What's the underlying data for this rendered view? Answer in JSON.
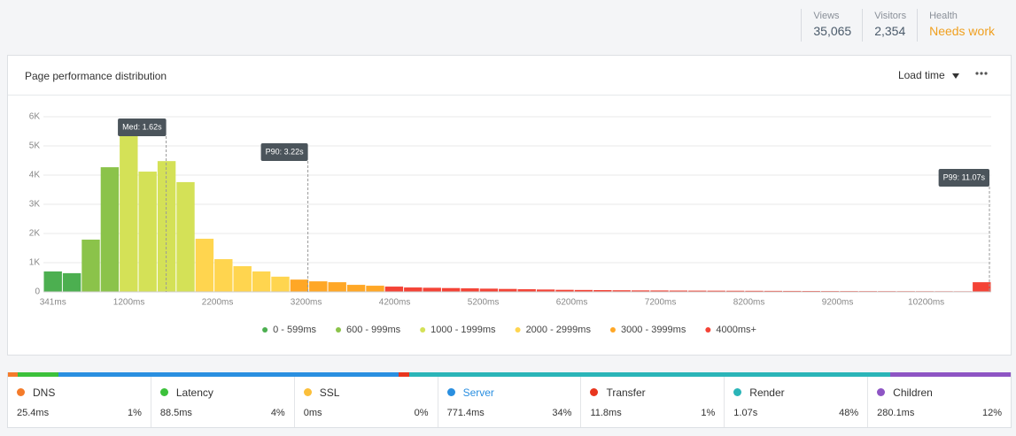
{
  "header": {
    "stats": [
      {
        "label": "Views",
        "value": "35,065"
      },
      {
        "label": "Visitors",
        "value": "2,354"
      },
      {
        "label": "Health",
        "value": "Needs work"
      }
    ]
  },
  "panel": {
    "title": "Page performance distribution",
    "metric_menu": "Load time"
  },
  "chart_data": {
    "type": "histogram",
    "bins": [
      234,
      448,
      662,
      876,
      1090,
      1304,
      1518,
      1732,
      1946,
      2160,
      2374,
      2588,
      2802,
      3016,
      3230,
      3444,
      3658,
      3872,
      4086,
      4300,
      4514,
      4728,
      4942,
      5156,
      5370,
      5584,
      5798,
      6012,
      6226,
      6440,
      6654,
      6868,
      7082,
      7296,
      7510,
      7724,
      7938,
      8152,
      8366,
      8580,
      8794,
      9008,
      9222,
      9436,
      9650,
      9864,
      10078,
      10292,
      10506,
      10720,
      10934
    ],
    "values": [
      700,
      640,
      1790,
      4270,
      5500,
      4120,
      4480,
      3760,
      1820,
      1120,
      880,
      700,
      520,
      420,
      360,
      330,
      240,
      210,
      180,
      150,
      140,
      130,
      120,
      110,
      100,
      90,
      80,
      70,
      65,
      60,
      55,
      50,
      48,
      45,
      42,
      40,
      38,
      36,
      34,
      32,
      30,
      28,
      27,
      26,
      25,
      24,
      23,
      22,
      21,
      330
    ],
    "colors": [
      "#4caf50",
      "#4caf50",
      "#8bc34a",
      "#8bc34a",
      "#d4e157",
      "#d4e157",
      "#d4e157",
      "#d4e157",
      "#ffd54f",
      "#ffd54f",
      "#ffd54f",
      "#ffd54f",
      "#ffd54f",
      "#ffa726",
      "#ffa726",
      "#ffa726",
      "#ffa726",
      "#ffa726",
      "#f44336",
      "#f44336",
      "#f44336",
      "#f44336",
      "#f44336",
      "#f44336",
      "#f44336",
      "#f44336",
      "#f44336",
      "#f44336",
      "#f44336",
      "#f44336",
      "#f44336",
      "#f44336",
      "#f44336",
      "#f44336",
      "#f44336",
      "#f44336",
      "#f44336",
      "#f44336",
      "#f44336",
      "#f44336",
      "#f44336",
      "#f44336",
      "#f44336",
      "#f44336",
      "#f44336",
      "#f44336",
      "#f44336",
      "#f44336",
      "#f44336",
      "#f44336"
    ],
    "xlim": [
      234,
      10934
    ],
    "xticks": [
      {
        "value": 341,
        "label": "341ms"
      },
      {
        "value": 1200,
        "label": "1200ms"
      },
      {
        "value": 2200,
        "label": "2200ms"
      },
      {
        "value": 3200,
        "label": "3200ms"
      },
      {
        "value": 4200,
        "label": "4200ms"
      },
      {
        "value": 5200,
        "label": "5200ms"
      },
      {
        "value": 6200,
        "label": "6200ms"
      },
      {
        "value": 7200,
        "label": "7200ms"
      },
      {
        "value": 8200,
        "label": "8200ms"
      },
      {
        "value": 9200,
        "label": "9200ms"
      },
      {
        "value": 10200,
        "label": "10200ms"
      }
    ],
    "ylim": [
      0,
      6000
    ],
    "yticks": [
      0,
      {
        "value": 1000,
        "label": "1K"
      },
      {
        "value": 2000,
        "label": "2K"
      },
      {
        "value": 3000,
        "label": "3K"
      },
      {
        "value": 4000,
        "label": "4K"
      },
      {
        "value": 5000,
        "label": "5K"
      },
      {
        "value": 6000,
        "label": "6K"
      }
    ],
    "grid": true,
    "legend": [
      {
        "name": "0 - 599ms",
        "color": "#4caf50"
      },
      {
        "name": "600 - 999ms",
        "color": "#8bc34a"
      },
      {
        "name": "1000 - 1999ms",
        "color": "#d4e157"
      },
      {
        "name": "2000 - 2999ms",
        "color": "#ffd54f"
      },
      {
        "name": "3000 - 3999ms",
        "color": "#ffa726"
      },
      {
        "name": "4000ms+",
        "color": "#f44336"
      }
    ],
    "annotations": [
      {
        "x": 1620,
        "label": "Med: 1.62s"
      },
      {
        "x": 3220,
        "label": "P90: 3.22s"
      },
      {
        "x": 11070,
        "label": "P99: 11.07s"
      }
    ]
  },
  "breakdown": {
    "items": [
      {
        "name": "DNS",
        "color": "#f47b2a",
        "time": "25.4ms",
        "share": {
          "value": 1,
          "label": "1%"
        }
      },
      {
        "name": "Latency",
        "color": "#3cc13b",
        "time": "88.5ms",
        "share": {
          "value": 4,
          "label": "4%"
        }
      },
      {
        "name": "SSL",
        "color": "#fbbf3a",
        "time": "0ms",
        "share": {
          "value": 0,
          "label": "0%"
        }
      },
      {
        "name": "Server",
        "color": "#2a8fe0",
        "time": "771.4ms",
        "share": {
          "value": 34,
          "label": "34%"
        }
      },
      {
        "name": "Transfer",
        "color": "#e8361e",
        "time": "11.8ms",
        "share": {
          "value": 1,
          "label": "1%"
        }
      },
      {
        "name": "Render",
        "color": "#2bb5b8",
        "time": "1.07s",
        "share": {
          "value": 48,
          "label": "48%"
        }
      },
      {
        "name": "Children",
        "color": "#8e55c4",
        "time": "280.1ms",
        "share": {
          "value": 12,
          "label": "12%"
        }
      }
    ]
  }
}
